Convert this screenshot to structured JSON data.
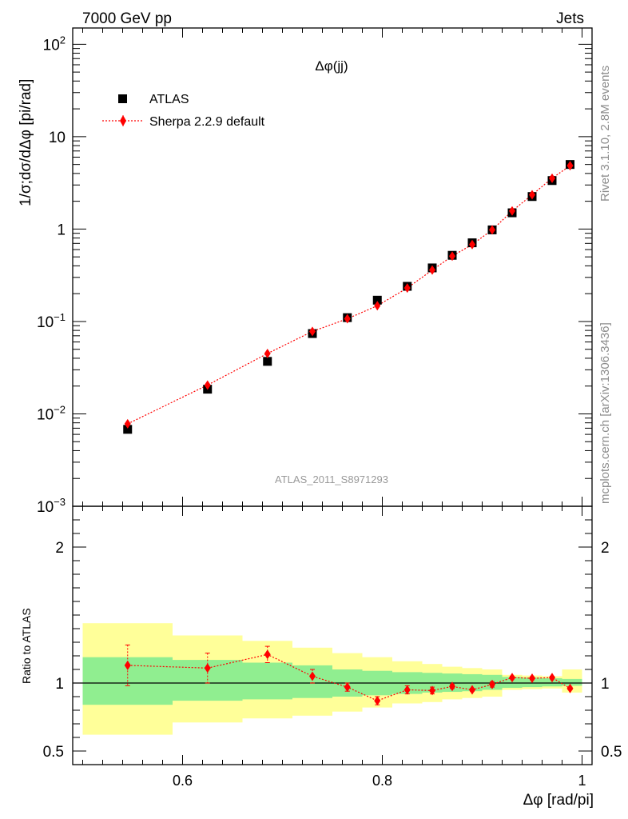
{
  "header": {
    "left": "7000 GeV pp",
    "right": "Jets"
  },
  "side_labels": {
    "top": "Rivet 3.1.10,  2.8M events",
    "bottom": "mcplots.cern.ch [arXiv:1306.3436]"
  },
  "watermark": "ATLAS_2011_S8971293",
  "chart_data": [
    {
      "type": "scatter",
      "title": "Δφ(jj)",
      "ylabel": "1/σ;dσ/dΔφ [pi/rad]",
      "xlabel": "",
      "yscale": "log",
      "xlim": [
        0.49,
        1.01
      ],
      "ylim": [
        0.001,
        150
      ],
      "yticks": [
        {
          "value": 0.001,
          "base": "10",
          "exp": "−3"
        },
        {
          "value": 0.01,
          "base": "10",
          "exp": "−2"
        },
        {
          "value": 0.1,
          "base": "10",
          "exp": "−1"
        },
        {
          "value": 1,
          "base": "1",
          "exp": ""
        },
        {
          "value": 10,
          "base": "10",
          "exp": ""
        },
        {
          "value": 100,
          "base": "10",
          "exp": "2"
        }
      ],
      "legend": {
        "position": "top-left"
      },
      "x": [
        0.545,
        0.625,
        0.685,
        0.73,
        0.765,
        0.795,
        0.825,
        0.85,
        0.87,
        0.89,
        0.91,
        0.93,
        0.95,
        0.97,
        0.988
      ],
      "series": [
        {
          "name": "ATLAS",
          "color": "#000000",
          "marker": "square",
          "values": [
            0.0068,
            0.0185,
            0.037,
            0.074,
            0.11,
            0.17,
            0.24,
            0.38,
            0.52,
            0.71,
            0.98,
            1.5,
            2.25,
            3.35,
            5.0
          ]
        },
        {
          "name": "Sherpa 2.2.9 default",
          "color": "#ff0000",
          "marker": "diamond",
          "line": "dotted",
          "values": [
            0.0078,
            0.0205,
            0.045,
            0.078,
            0.107,
            0.148,
            0.23,
            0.36,
            0.51,
            0.68,
            0.98,
            1.57,
            2.35,
            3.55,
            4.85
          ],
          "err_low": [
            0.0071,
            0.0195,
            0.043,
            0.075,
            0.104,
            0.143,
            0.223,
            0.35,
            0.5,
            0.66,
            0.96,
            1.54,
            2.3,
            3.48,
            4.76
          ],
          "err_high": [
            0.0086,
            0.0215,
            0.047,
            0.081,
            0.11,
            0.153,
            0.237,
            0.37,
            0.52,
            0.7,
            1.0,
            1.6,
            2.4,
            3.62,
            4.94
          ]
        }
      ]
    },
    {
      "type": "scatter",
      "ylabel": "Ratio to ATLAS",
      "xlabel": "Δφ [rad/pi]",
      "xlim": [
        0.49,
        1.01
      ],
      "ylim": [
        0.4,
        2.3
      ],
      "yticks": [
        0.5,
        1,
        2
      ],
      "ytick_labels": [
        "0.5",
        "1",
        "2"
      ],
      "xticks": [
        0.6,
        0.8,
        1
      ],
      "xtick_labels": [
        "0.6",
        "0.8",
        "1"
      ],
      "bins": [
        [
          0.5,
          0.59
        ],
        [
          0.59,
          0.66
        ],
        [
          0.66,
          0.71
        ],
        [
          0.71,
          0.75
        ],
        [
          0.75,
          0.78
        ],
        [
          0.78,
          0.81
        ],
        [
          0.81,
          0.84
        ],
        [
          0.84,
          0.86
        ],
        [
          0.86,
          0.88
        ],
        [
          0.88,
          0.9
        ],
        [
          0.9,
          0.92
        ],
        [
          0.92,
          0.94
        ],
        [
          0.94,
          0.96
        ],
        [
          0.96,
          0.98
        ],
        [
          0.98,
          1.0
        ]
      ],
      "bands": {
        "inner": {
          "color": "#90ee90",
          "low": [
            0.84,
            0.87,
            0.88,
            0.89,
            0.9,
            0.91,
            0.92,
            0.93,
            0.935,
            0.94,
            0.95,
            0.965,
            0.97,
            0.975,
            0.98
          ],
          "high": [
            1.19,
            1.17,
            1.15,
            1.13,
            1.1,
            1.09,
            1.08,
            1.075,
            1.07,
            1.065,
            1.06,
            1.045,
            1.04,
            1.035,
            1.03
          ]
        },
        "outer": {
          "color": "#ffff99",
          "low": [
            0.62,
            0.71,
            0.74,
            0.76,
            0.79,
            0.82,
            0.85,
            0.86,
            0.88,
            0.89,
            0.9,
            0.95,
            0.955,
            0.96,
            0.93
          ]
        },
        "outer_high": [
          1.44,
          1.35,
          1.31,
          1.26,
          1.22,
          1.19,
          1.16,
          1.14,
          1.12,
          1.11,
          1.1,
          1.06,
          1.055,
          1.05,
          1.1
        ]
      },
      "series": [
        {
          "name": "Sherpa 2.2.9 default",
          "color": "#ff0000",
          "values": [
            1.13,
            1.11,
            1.21,
            1.05,
            0.97,
            0.87,
            0.95,
            0.945,
            0.975,
            0.95,
            0.99,
            1.04,
            1.035,
            1.04,
            0.96
          ],
          "err_low": [
            0.98,
            1.0,
            1.15,
            1.0,
            0.94,
            0.84,
            0.92,
            0.92,
            0.96,
            0.94,
            0.97,
            1.03,
            1.025,
            1.03,
            0.95
          ],
          "err_high": [
            1.28,
            1.22,
            1.27,
            1.1,
            1.0,
            0.9,
            0.98,
            0.97,
            0.99,
            0.96,
            1.01,
            1.05,
            1.045,
            1.05,
            0.97
          ]
        }
      ]
    }
  ]
}
